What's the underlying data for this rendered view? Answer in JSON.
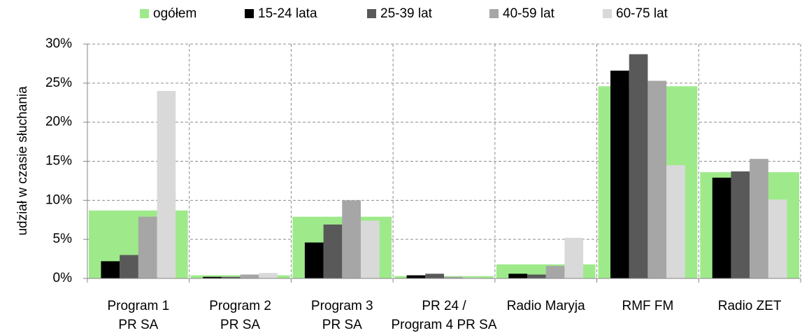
{
  "chart_data": {
    "type": "bar",
    "y_label": "udział w czasie słuchania",
    "categories": [
      "Program 1\nPR SA",
      "Program 2\nPR SA",
      "Program 3\nPR SA",
      "PR 24 /\nProgram 4 PR SA",
      "Radio Maryja",
      "RMF FM",
      "Radio ZET"
    ],
    "series": [
      {
        "name": "ogółem",
        "color": "#9eea8a",
        "values": [
          8.7,
          0.4,
          7.9,
          0.3,
          1.8,
          24.6,
          13.6
        ]
      },
      {
        "name": "15-24 lata",
        "color": "#000000",
        "values": [
          2.2,
          0.2,
          4.6,
          0.4,
          0.6,
          26.6,
          12.9
        ]
      },
      {
        "name": "25-39 lat",
        "color": "#595959",
        "values": [
          3.0,
          0.2,
          6.9,
          0.6,
          0.5,
          28.7,
          13.7
        ]
      },
      {
        "name": "40-59 lat",
        "color": "#a6a6a6",
        "values": [
          7.9,
          0.5,
          10.0,
          0.2,
          1.6,
          25.3,
          15.3
        ]
      },
      {
        "name": "60-75 lat",
        "color": "#d9d9d9",
        "values": [
          24.0,
          0.7,
          7.4,
          0.1,
          5.2,
          14.5,
          10.1
        ]
      }
    ],
    "ylim": [
      0,
      30
    ],
    "yticks": [
      {
        "value": 0,
        "label": "0%"
      },
      {
        "value": 5,
        "label": "5%"
      },
      {
        "value": 10,
        "label": "10%"
      },
      {
        "value": 15,
        "label": "15%"
      },
      {
        "value": 20,
        "label": "20%"
      },
      {
        "value": 25,
        "label": "25%"
      },
      {
        "value": 30,
        "label": "30%"
      }
    ],
    "grid": true,
    "legend": "top"
  }
}
